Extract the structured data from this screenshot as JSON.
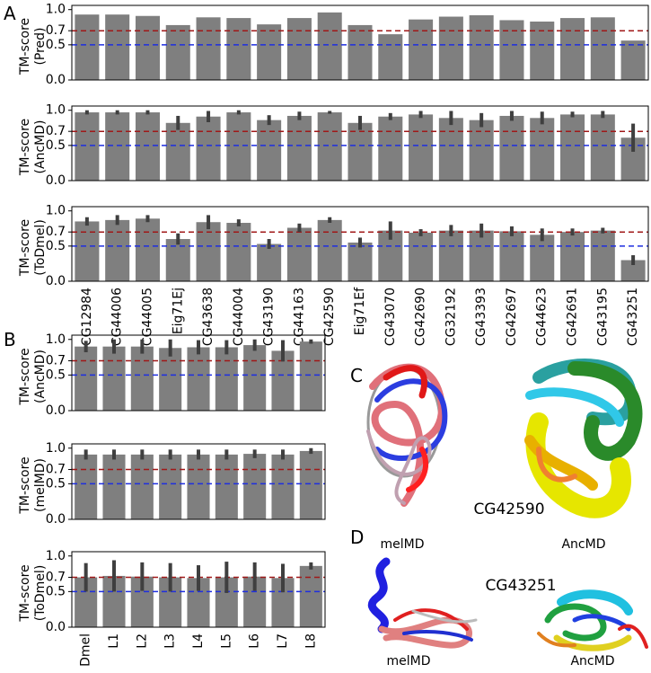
{
  "panel_labels": [
    "A",
    "B",
    "C",
    "D"
  ],
  "images": {
    "C": {
      "title": "CG42590",
      "left": "melMD",
      "right": "AncMD"
    },
    "D": {
      "title": "CG43251",
      "left": "melMD",
      "right": "AncMD"
    }
  },
  "chart_data": [
    {
      "type": "bar",
      "ylabel": [
        "TM-score",
        "(Pred)"
      ],
      "color": "#7f7f7f",
      "values": [
        0.93,
        0.93,
        0.91,
        0.78,
        0.89,
        0.88,
        0.79,
        0.88,
        0.96,
        0.78,
        0.65,
        0.86,
        0.9,
        0.92,
        0.85,
        0.83,
        0.88,
        0.89,
        0.56
      ],
      "ylim": [
        0,
        1.06
      ],
      "yticks": [
        {
          "value": 0,
          "label": "0.0"
        },
        0.5,
        0.7,
        {
          "value": 1,
          "label": "1.0"
        }
      ],
      "hlines": [
        {
          "value": 0.7,
          "color": "#a01818"
        },
        {
          "value": 0.5,
          "color": "#1f2fe0"
        }
      ]
    },
    {
      "type": "bar",
      "ylabel": [
        "TM-score",
        "(AncMD)"
      ],
      "color": "#7f7f7f",
      "error_color": "#3f3f3f",
      "values": [
        0.97,
        0.97,
        0.97,
        0.82,
        0.91,
        0.97,
        0.86,
        0.92,
        0.97,
        0.82,
        0.91,
        0.94,
        0.89,
        0.86,
        0.92,
        0.89,
        0.94,
        0.94,
        0.61
      ],
      "errors": [
        0.03,
        0.03,
        0.03,
        0.1,
        0.08,
        0.03,
        0.07,
        0.06,
        0.02,
        0.1,
        0.05,
        0.05,
        0.1,
        0.1,
        0.07,
        0.09,
        0.04,
        0.05,
        0.2
      ],
      "ylim": [
        0,
        1.06
      ],
      "yticks": [
        {
          "value": 0,
          "label": "0.0"
        },
        0.5,
        0.7,
        {
          "value": 1,
          "label": "1.0"
        }
      ],
      "hlines": [
        {
          "value": 0.7,
          "color": "#a01818"
        },
        {
          "value": 0.5,
          "color": "#1f2fe0"
        }
      ]
    },
    {
      "type": "bar",
      "ylabel": [
        "TM-score",
        "(ToDmel)"
      ],
      "color": "#7f7f7f",
      "error_color": "#3f3f3f",
      "categories": [
        "CG12984",
        "CG44006",
        "CG44005",
        "Eig71Ej",
        "CG43638",
        "CG44004",
        "CG43190",
        "CG44163",
        "CG42590",
        "Eig71Ef",
        "CG43070",
        "CG42690",
        "CG32192",
        "CG43393",
        "CG42697",
        "CG44623",
        "CG42691",
        "CG43195",
        "CG43251"
      ],
      "values": [
        0.85,
        0.87,
        0.89,
        0.6,
        0.84,
        0.83,
        0.53,
        0.76,
        0.87,
        0.55,
        0.72,
        0.69,
        0.72,
        0.72,
        0.71,
        0.66,
        0.7,
        0.72,
        0.3
      ],
      "errors": [
        0.06,
        0.07,
        0.05,
        0.08,
        0.1,
        0.05,
        0.07,
        0.06,
        0.04,
        0.07,
        0.13,
        0.05,
        0.08,
        0.1,
        0.07,
        0.09,
        0.05,
        0.04,
        0.07
      ],
      "ylim": [
        0,
        1.06
      ],
      "yticks": [
        {
          "value": 0,
          "label": "0.0"
        },
        0.5,
        0.7,
        {
          "value": 1,
          "label": "1.0"
        }
      ],
      "hlines": [
        {
          "value": 0.7,
          "color": "#a01818"
        },
        {
          "value": 0.5,
          "color": "#1f2fe0"
        }
      ]
    },
    {
      "type": "bar",
      "ylabel": [
        "TM-score",
        "(AncMD)"
      ],
      "color": "#7f7f7f",
      "error_color": "#3f3f3f",
      "values": [
        0.9,
        0.9,
        0.9,
        0.88,
        0.89,
        0.89,
        0.92,
        0.84,
        0.97
      ],
      "errors": [
        0.08,
        0.1,
        0.1,
        0.12,
        0.1,
        0.1,
        0.08,
        0.15,
        0.03
      ],
      "ylim": [
        0,
        1.06
      ],
      "yticks": [
        {
          "value": 0,
          "label": "0.0"
        },
        0.5,
        0.7,
        {
          "value": 1,
          "label": "1.0"
        }
      ],
      "hlines": [
        {
          "value": 0.7,
          "color": "#a01818"
        },
        {
          "value": 0.5,
          "color": "#1f2fe0"
        }
      ]
    },
    {
      "type": "bar",
      "ylabel": [
        "TM-score",
        "(melMD)"
      ],
      "color": "#7f7f7f",
      "error_color": "#3f3f3f",
      "values": [
        0.91,
        0.91,
        0.91,
        0.91,
        0.91,
        0.91,
        0.92,
        0.91,
        0.96
      ],
      "errors": [
        0.07,
        0.07,
        0.07,
        0.07,
        0.07,
        0.07,
        0.06,
        0.07,
        0.04
      ],
      "ylim": [
        0,
        1.06
      ],
      "yticks": [
        {
          "value": 0,
          "label": "0.0"
        },
        0.5,
        0.7,
        {
          "value": 1,
          "label": "1.0"
        }
      ],
      "hlines": [
        {
          "value": 0.7,
          "color": "#a01818"
        },
        {
          "value": 0.5,
          "color": "#1f2fe0"
        }
      ]
    },
    {
      "type": "bar",
      "ylabel": [
        "TM-score",
        "(ToDmel)"
      ],
      "color": "#7f7f7f",
      "error_color": "#3f3f3f",
      "categories": [
        "Dmel",
        "L1",
        "L2",
        "L3",
        "L4",
        "L5",
        "L6",
        "L7",
        "L8"
      ],
      "values": [
        0.7,
        0.72,
        0.71,
        0.7,
        0.69,
        0.7,
        0.71,
        0.69,
        0.86
      ],
      "errors": [
        0.2,
        0.22,
        0.2,
        0.2,
        0.18,
        0.22,
        0.2,
        0.2,
        0.05
      ],
      "ylim": [
        0,
        1.06
      ],
      "yticks": [
        {
          "value": 0,
          "label": "0.0"
        },
        0.5,
        0.7,
        {
          "value": 1,
          "label": "1.0"
        }
      ],
      "hlines": [
        {
          "value": 0.7,
          "color": "#a01818"
        },
        {
          "value": 0.5,
          "color": "#1f2fe0"
        }
      ]
    }
  ]
}
